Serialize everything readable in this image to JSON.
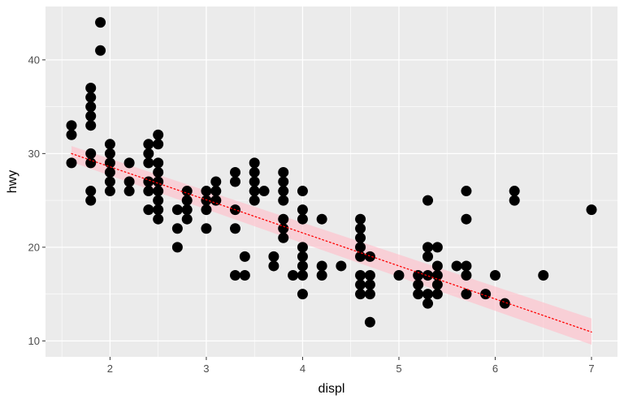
{
  "chart_data": {
    "type": "scatter",
    "title": "",
    "xlabel": "displ",
    "ylabel": "hwy",
    "xlim": [
      1.33,
      7.27
    ],
    "ylim": [
      8.3,
      45.7
    ],
    "xticks": [
      2,
      3,
      4,
      5,
      6,
      7
    ],
    "yticks": [
      10,
      20,
      30,
      40
    ],
    "xtick_labels": [
      "2",
      "3",
      "4",
      "5",
      "6",
      "7"
    ],
    "ytick_labels": [
      "10",
      "20",
      "30",
      "40"
    ],
    "grid": true,
    "legend": "none",
    "colors": {
      "panel": "#ebebeb",
      "grid_major": "#ffffff",
      "point": "#000000",
      "smooth_line": "#ff0000",
      "smooth_band": "#ffc0cb"
    },
    "points": [
      [
        1.6,
        33
      ],
      [
        1.6,
        32
      ],
      [
        1.6,
        29
      ],
      [
        1.8,
        37
      ],
      [
        1.8,
        36
      ],
      [
        1.8,
        35
      ],
      [
        1.8,
        34
      ],
      [
        1.8,
        33
      ],
      [
        1.8,
        30
      ],
      [
        1.8,
        29
      ],
      [
        1.8,
        26
      ],
      [
        1.8,
        25
      ],
      [
        1.9,
        44
      ],
      [
        1.9,
        41
      ],
      [
        2.0,
        31
      ],
      [
        2.0,
        30
      ],
      [
        2.0,
        29
      ],
      [
        2.0,
        28
      ],
      [
        2.0,
        27
      ],
      [
        2.0,
        26
      ],
      [
        2.2,
        29
      ],
      [
        2.2,
        27
      ],
      [
        2.2,
        26
      ],
      [
        2.4,
        31
      ],
      [
        2.4,
        30
      ],
      [
        2.4,
        29
      ],
      [
        2.4,
        27
      ],
      [
        2.4,
        26
      ],
      [
        2.4,
        24
      ],
      [
        2.5,
        32
      ],
      [
        2.5,
        31
      ],
      [
        2.5,
        29
      ],
      [
        2.5,
        28
      ],
      [
        2.5,
        27
      ],
      [
        2.5,
        26
      ],
      [
        2.5,
        25
      ],
      [
        2.5,
        24
      ],
      [
        2.5,
        23
      ],
      [
        2.7,
        24
      ],
      [
        2.7,
        22
      ],
      [
        2.7,
        20
      ],
      [
        2.8,
        26
      ],
      [
        2.8,
        25
      ],
      [
        2.8,
        24
      ],
      [
        2.8,
        23
      ],
      [
        3.0,
        26
      ],
      [
        3.0,
        25
      ],
      [
        3.0,
        24
      ],
      [
        3.0,
        22
      ],
      [
        3.1,
        27
      ],
      [
        3.1,
        26
      ],
      [
        3.1,
        25
      ],
      [
        3.3,
        28
      ],
      [
        3.3,
        27
      ],
      [
        3.3,
        24
      ],
      [
        3.3,
        22
      ],
      [
        3.3,
        17
      ],
      [
        3.4,
        19
      ],
      [
        3.4,
        17
      ],
      [
        3.5,
        29
      ],
      [
        3.5,
        28
      ],
      [
        3.5,
        27
      ],
      [
        3.5,
        26
      ],
      [
        3.5,
        25
      ],
      [
        3.6,
        26
      ],
      [
        3.7,
        19
      ],
      [
        3.7,
        18
      ],
      [
        3.8,
        28
      ],
      [
        3.8,
        27
      ],
      [
        3.8,
        26
      ],
      [
        3.8,
        25
      ],
      [
        3.8,
        23
      ],
      [
        3.8,
        22
      ],
      [
        3.8,
        21
      ],
      [
        3.9,
        17
      ],
      [
        4.0,
        26
      ],
      [
        4.0,
        24
      ],
      [
        4.0,
        23
      ],
      [
        4.0,
        20
      ],
      [
        4.0,
        19
      ],
      [
        4.0,
        18
      ],
      [
        4.0,
        17
      ],
      [
        4.0,
        15
      ],
      [
        4.2,
        23
      ],
      [
        4.2,
        18
      ],
      [
        4.2,
        17
      ],
      [
        4.4,
        18
      ],
      [
        4.6,
        23
      ],
      [
        4.6,
        22
      ],
      [
        4.6,
        21
      ],
      [
        4.6,
        20
      ],
      [
        4.6,
        19
      ],
      [
        4.6,
        17
      ],
      [
        4.6,
        16
      ],
      [
        4.6,
        15
      ],
      [
        4.7,
        19
      ],
      [
        4.7,
        17
      ],
      [
        4.7,
        16
      ],
      [
        4.7,
        15
      ],
      [
        4.7,
        12
      ],
      [
        5.0,
        17
      ],
      [
        5.2,
        17
      ],
      [
        5.2,
        16
      ],
      [
        5.2,
        15
      ],
      [
        5.3,
        25
      ],
      [
        5.3,
        20
      ],
      [
        5.3,
        19
      ],
      [
        5.3,
        17
      ],
      [
        5.3,
        15
      ],
      [
        5.3,
        14
      ],
      [
        5.4,
        20
      ],
      [
        5.4,
        18
      ],
      [
        5.4,
        17
      ],
      [
        5.4,
        16
      ],
      [
        5.4,
        15
      ],
      [
        5.6,
        18
      ],
      [
        5.7,
        26
      ],
      [
        5.7,
        23
      ],
      [
        5.7,
        18
      ],
      [
        5.7,
        17
      ],
      [
        5.7,
        15
      ],
      [
        5.9,
        15
      ],
      [
        6.0,
        17
      ],
      [
        6.1,
        14
      ],
      [
        6.2,
        26
      ],
      [
        6.2,
        25
      ],
      [
        6.5,
        17
      ],
      [
        7.0,
        24
      ]
    ],
    "smooth": {
      "method": "linear",
      "line_style": "dotted",
      "x": [
        1.6,
        7.0
      ],
      "y": [
        30.0,
        10.95
      ],
      "band_lower": [
        29.1,
        9.6
      ],
      "band_upper": [
        30.8,
        12.4
      ]
    }
  }
}
